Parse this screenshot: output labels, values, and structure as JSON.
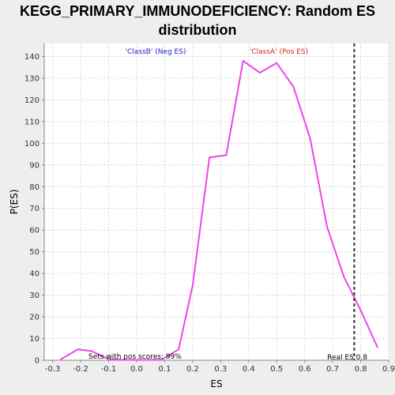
{
  "title_line1": "KEGG_PRIMARY_IMMUNODEFICIENCY: Random ES",
  "title_line2": "distribution",
  "chart_data": {
    "type": "line",
    "xlabel": "ES",
    "ylabel": "P(ES)",
    "xlim": [
      -0.33,
      0.9
    ],
    "ylim": [
      0,
      146
    ],
    "xticks": [
      -0.3,
      -0.2,
      -0.1,
      0.0,
      0.1,
      0.2,
      0.3,
      0.4,
      0.5,
      0.6,
      0.7,
      0.8,
      0.9
    ],
    "xtick_labels": [
      "-0.3",
      "-0.2",
      "-0.1",
      "0.0",
      "0.1",
      "0.2",
      "0.3",
      "0.4",
      "0.5",
      "0.6",
      "0.7",
      "0.8",
      "0.9"
    ],
    "yticks": [
      0,
      10,
      20,
      30,
      40,
      50,
      60,
      70,
      80,
      90,
      100,
      110,
      120,
      130,
      140
    ],
    "grid": true,
    "series": [
      {
        "color": "#ee44ee",
        "x": [
          -0.27,
          -0.21,
          -0.16,
          -0.1,
          -0.04,
          0.02,
          0.09,
          0.15,
          0.2,
          0.26,
          0.32,
          0.38,
          0.44,
          0.5,
          0.56,
          0.62,
          0.68,
          0.74,
          0.8,
          0.86
        ],
        "y": [
          0.5,
          5,
          4.2,
          0.5,
          0.2,
          0.2,
          0.3,
          5,
          34.5,
          93.5,
          94.5,
          138,
          132.5,
          137,
          126,
          102,
          61.5,
          38.5,
          23,
          6
        ]
      }
    ],
    "real_es": 0.777,
    "real_es_label": "Real ES 0.8",
    "neg_label": "'ClassB' (Neg ES)",
    "pos_label": "'ClassA' (Pos ES)",
    "pos_scores_label": "Sets with pos scores: 99%",
    "neg_color": "#2222cc",
    "pos_color": "#dd2222"
  }
}
